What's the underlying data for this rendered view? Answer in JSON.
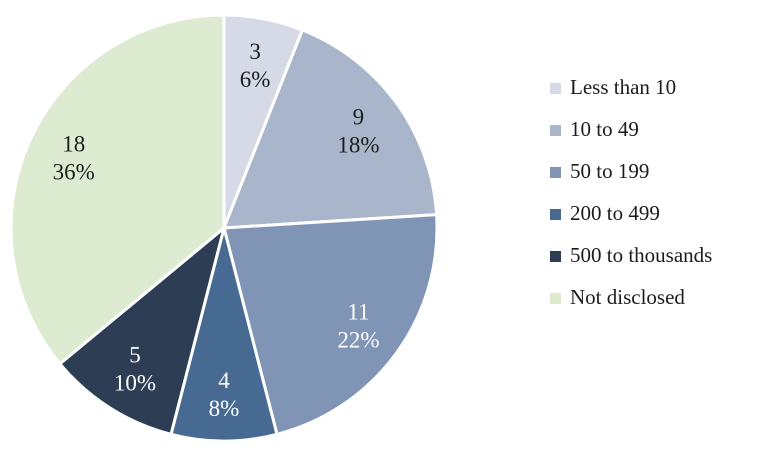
{
  "chart_data": {
    "type": "pie",
    "title": "",
    "legend_position": "right",
    "start_angle_deg": 0,
    "direction": "clockwise",
    "total": 50,
    "separator_color": "#ffffff",
    "background_color": "#ffffff",
    "slice_label_format": "value, newline, pct%",
    "slices": [
      {
        "label": "Less than 10",
        "value": 3,
        "pct": 6,
        "color": "#d6dae6",
        "text_color": "#1c1c1c"
      },
      {
        "label": "10 to 49",
        "value": 9,
        "pct": 18,
        "color": "#a9b5cb",
        "text_color": "#1c1c1c"
      },
      {
        "label": "50 to 199",
        "value": 11,
        "pct": 22,
        "color": "#8094b5",
        "text_color": "#ffffff"
      },
      {
        "label": "200 to 499",
        "value": 4,
        "pct": 8,
        "color": "#476a92",
        "text_color": "#ffffff"
      },
      {
        "label": "500 to thousands",
        "value": 5,
        "pct": 10,
        "color": "#2d3e54",
        "text_color": "#ffffff"
      },
      {
        "label": "Not disclosed",
        "value": 18,
        "pct": 36,
        "color": "#ddecd1",
        "text_color": "#1c1c1c"
      }
    ]
  }
}
